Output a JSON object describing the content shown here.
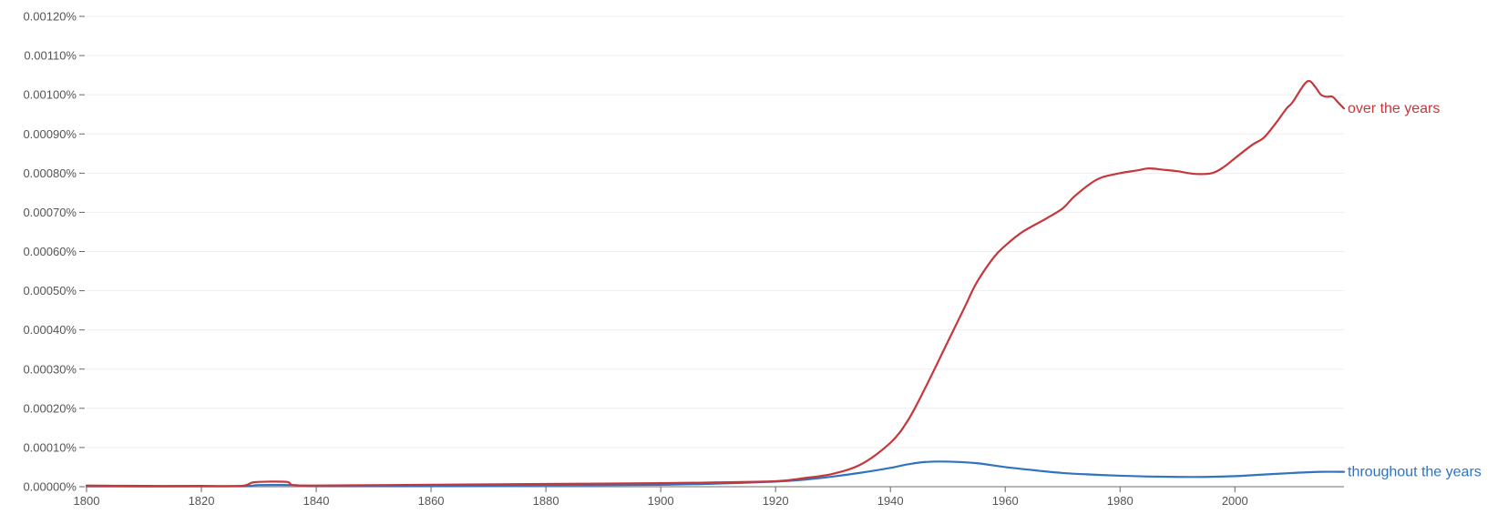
{
  "chart_data": {
    "type": "line",
    "title": "",
    "xlabel": "",
    "ylabel": "",
    "xlim": [
      1800,
      2019
    ],
    "ylim": [
      0,
      0.0012
    ],
    "grid": true,
    "legend": "inline-right",
    "x_ticks": [
      1800,
      1820,
      1840,
      1860,
      1880,
      1900,
      1920,
      1940,
      1960,
      1980,
      2000
    ],
    "x_tick_labels": [
      "1800",
      "1820",
      "1840",
      "1860",
      "1880",
      "1900",
      "1920",
      "1940",
      "1960",
      "1980",
      "2000"
    ],
    "y_ticks": [
      0,
      0.0001,
      0.0002,
      0.0003,
      0.0004,
      0.0005,
      0.0006,
      0.0007,
      0.0008,
      0.0009,
      0.001,
      0.0011,
      0.0012
    ],
    "y_tick_labels": [
      "0.00000%",
      "0.00010%",
      "0.00020%",
      "0.00030%",
      "0.00040%",
      "0.00050%",
      "0.00060%",
      "0.00070%",
      "0.00080%",
      "0.00090%",
      "0.00100%",
      "0.00110%",
      "0.00120%"
    ],
    "series": [
      {
        "name": "over the years",
        "color": "#c5373b",
        "x": [
          1800,
          1810,
          1820,
          1827,
          1829,
          1832,
          1835,
          1836,
          1840,
          1860,
          1880,
          1900,
          1910,
          1920,
          1925,
          1930,
          1935,
          1940,
          1943,
          1946,
          1950,
          1953,
          1955,
          1958,
          1960,
          1963,
          1967,
          1970,
          1972,
          1975,
          1977,
          1980,
          1983,
          1985,
          1988,
          1990,
          1993,
          1996,
          1998,
          2000,
          2003,
          2005,
          2007,
          2009,
          2010,
          2012,
          2013,
          2014,
          2015,
          2016,
          2017,
          2018,
          2019
        ],
        "values": [
          3e-06,
          2e-06,
          2e-06,
          2e-06,
          1.1e-05,
          1.3e-05,
          1.2e-05,
          4e-06,
          3e-06,
          5e-06,
          7e-06,
          9e-06,
          1.1e-05,
          1.4e-05,
          2.2e-05,
          3.3e-05,
          5.8e-05,
          0.000112,
          0.000168,
          0.00025,
          0.00037,
          0.00046,
          0.00052,
          0.000585,
          0.000615,
          0.00065,
          0.000683,
          0.00071,
          0.00074,
          0.000775,
          0.00079,
          0.0008,
          0.000807,
          0.000812,
          0.000808,
          0.000805,
          0.000798,
          0.0008,
          0.000815,
          0.000838,
          0.000872,
          0.00089,
          0.000925,
          0.000965,
          0.00098,
          0.001025,
          0.001035,
          0.00102,
          0.001,
          0.000995,
          0.000995,
          0.00098,
          0.000965
        ]
      },
      {
        "name": "throughout the years",
        "color": "#2f73c1",
        "x": [
          1800,
          1820,
          1828,
          1830,
          1836,
          1840,
          1860,
          1880,
          1900,
          1910,
          1920,
          1925,
          1930,
          1935,
          1940,
          1943,
          1946,
          1950,
          1955,
          1960,
          1965,
          1970,
          1975,
          1980,
          1985,
          1990,
          1995,
          2000,
          2005,
          2010,
          2015,
          2019
        ],
        "values": [
          1e-06,
          1e-06,
          2e-06,
          4e-06,
          4e-06,
          2e-06,
          2e-06,
          3e-06,
          5e-06,
          8e-06,
          1.3e-05,
          1.8e-05,
          2.6e-05,
          3.6e-05,
          4.8e-05,
          5.7e-05,
          6.3e-05,
          6.4e-05,
          6e-05,
          5e-05,
          4.2e-05,
          3.5e-05,
          3.1e-05,
          2.8e-05,
          2.6e-05,
          2.5e-05,
          2.5e-05,
          2.7e-05,
          3.1e-05,
          3.5e-05,
          3.8e-05,
          3.8e-05
        ]
      }
    ]
  }
}
